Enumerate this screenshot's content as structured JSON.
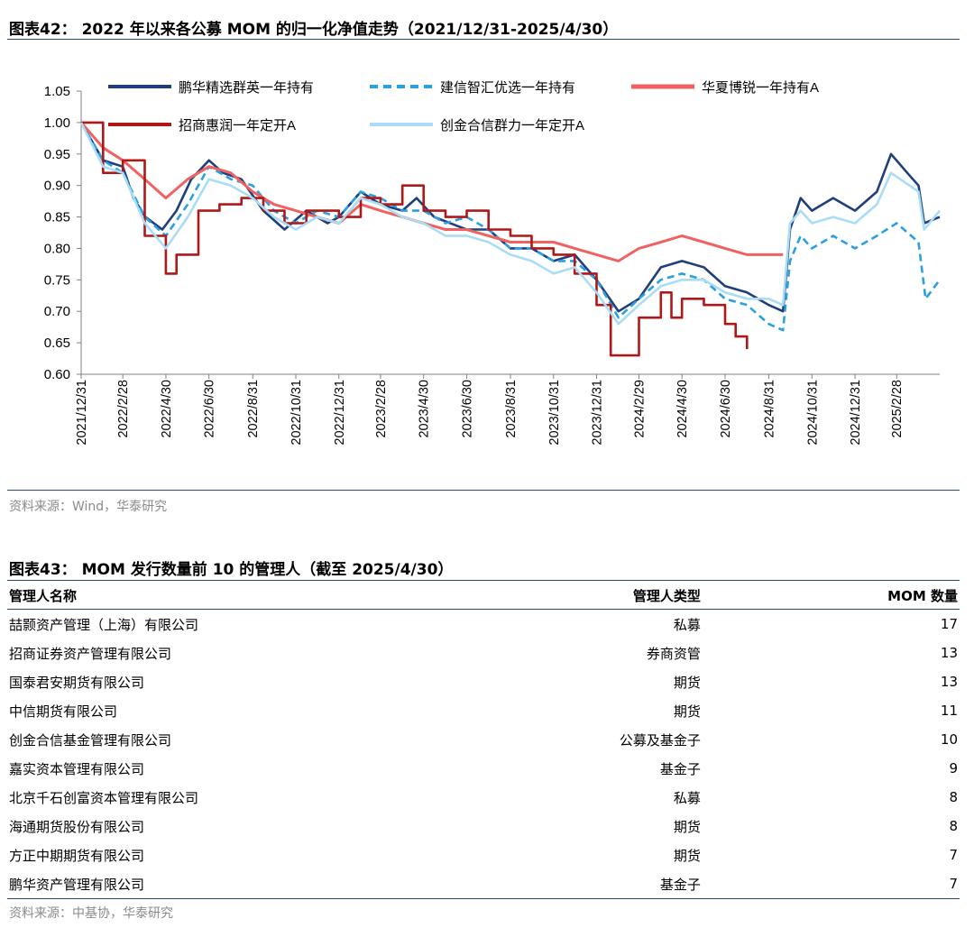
{
  "figure42": {
    "title": "图表42：  2022 年以来各公募 MOM 的归一化净值走势（2021/12/31-2025/4/30）",
    "source": "资料来源：Wind，华泰研究"
  },
  "figure43": {
    "title": "图表43：  MOM 发行数量前 10 的管理人（截至 2025/4/30）",
    "source": "资料来源：中基协，华泰研究",
    "columns": [
      "管理人名称",
      "管理人类型",
      "MOM 数量"
    ],
    "rows": [
      [
        "喆颢资产管理（上海）有限公司",
        "私募",
        "17"
      ],
      [
        "招商证券资产管理有限公司",
        "券商资管",
        "13"
      ],
      [
        "国泰君安期货有限公司",
        "期货",
        "13"
      ],
      [
        "中信期货有限公司",
        "期货",
        "11"
      ],
      [
        "创金合信基金管理有限公司",
        "公募及基金子",
        "10"
      ],
      [
        "嘉实资本管理有限公司",
        "基金子",
        "9"
      ],
      [
        "北京千石创富资本管理有限公司",
        "私募",
        "8"
      ],
      [
        "海通期货股份有限公司",
        "期货",
        "8"
      ],
      [
        "方正中期期货有限公司",
        "期货",
        "7"
      ],
      [
        "鹏华资产管理有限公司",
        "基金子",
        "7"
      ]
    ]
  },
  "chart_data": {
    "type": "line",
    "title": "",
    "xlabel": "",
    "ylabel": "",
    "ylim": [
      0.6,
      1.05
    ],
    "yticks": [
      "0.60",
      "0.65",
      "0.70",
      "0.75",
      "0.80",
      "0.85",
      "0.90",
      "0.95",
      "1.00",
      "1.05"
    ],
    "x_range": [
      "2021/12/31",
      "2025/4/30"
    ],
    "x_tick_labels": [
      "2021/12/31",
      "2022/2/28",
      "2022/4/30",
      "2022/6/30",
      "2022/8/31",
      "2022/10/31",
      "2022/12/31",
      "2023/2/28",
      "2023/4/30",
      "2023/6/30",
      "2023/8/31",
      "2023/10/31",
      "2023/12/31",
      "2024/2/29",
      "2024/4/30",
      "2024/6/30",
      "2024/8/31",
      "2024/10/31",
      "2024/12/31",
      "2025/2/28"
    ],
    "legend_position": "top",
    "grid": false,
    "series": [
      {
        "name": "鹏华精选群英一年持有",
        "color": "#1f3f7a",
        "dash": "solid",
        "points": [
          [
            "2021/12/31",
            1.0
          ],
          [
            "2022/1/31",
            0.94
          ],
          [
            "2022/2/28",
            0.93
          ],
          [
            "2022/3/15",
            0.88
          ],
          [
            "2022/4/1",
            0.85
          ],
          [
            "2022/4/25",
            0.83
          ],
          [
            "2022/5/15",
            0.86
          ],
          [
            "2022/6/5",
            0.91
          ],
          [
            "2022/6/30",
            0.94
          ],
          [
            "2022/7/20",
            0.92
          ],
          [
            "2022/8/15",
            0.91
          ],
          [
            "2022/9/15",
            0.86
          ],
          [
            "2022/10/15",
            0.83
          ],
          [
            "2022/11/15",
            0.86
          ],
          [
            "2022/12/15",
            0.84
          ],
          [
            "2022/12/31",
            0.85
          ],
          [
            "2023/1/31",
            0.89
          ],
          [
            "2023/2/28",
            0.87
          ],
          [
            "2023/3/31",
            0.86
          ],
          [
            "2023/4/20",
            0.88
          ],
          [
            "2023/5/15",
            0.85
          ],
          [
            "2023/6/30",
            0.83
          ],
          [
            "2023/7/31",
            0.83
          ],
          [
            "2023/8/31",
            0.8
          ],
          [
            "2023/9/30",
            0.8
          ],
          [
            "2023/10/31",
            0.78
          ],
          [
            "2023/11/30",
            0.79
          ],
          [
            "2023/12/31",
            0.75
          ],
          [
            "2024/1/31",
            0.7
          ],
          [
            "2024/2/29",
            0.72
          ],
          [
            "2024/3/31",
            0.77
          ],
          [
            "2024/4/30",
            0.78
          ],
          [
            "2024/5/31",
            0.77
          ],
          [
            "2024/6/30",
            0.74
          ],
          [
            "2024/7/31",
            0.73
          ],
          [
            "2024/8/31",
            0.71
          ],
          [
            "2024/9/20",
            0.7
          ],
          [
            "2024/9/30",
            0.83
          ],
          [
            "2024/10/15",
            0.88
          ],
          [
            "2024/10/31",
            0.86
          ],
          [
            "2024/11/30",
            0.88
          ],
          [
            "2024/12/31",
            0.86
          ],
          [
            "2025/1/31",
            0.89
          ],
          [
            "2025/2/20",
            0.95
          ],
          [
            "2025/3/15",
            0.92
          ],
          [
            "2025/3/31",
            0.9
          ],
          [
            "2025/4/8",
            0.84
          ],
          [
            "2025/4/30",
            0.85
          ]
        ]
      },
      {
        "name": "建信智汇优选一年持有",
        "color": "#2aa0e0",
        "dash": "dashed",
        "points": [
          [
            "2021/12/31",
            1.0
          ],
          [
            "2022/1/31",
            0.94
          ],
          [
            "2022/2/28",
            0.92
          ],
          [
            "2022/3/31",
            0.85
          ],
          [
            "2022/4/30",
            0.82
          ],
          [
            "2022/5/31",
            0.87
          ],
          [
            "2022/6/30",
            0.93
          ],
          [
            "2022/7/31",
            0.91
          ],
          [
            "2022/8/31",
            0.9
          ],
          [
            "2022/9/30",
            0.86
          ],
          [
            "2022/10/31",
            0.84
          ],
          [
            "2022/11/30",
            0.86
          ],
          [
            "2022/12/31",
            0.85
          ],
          [
            "2023/1/31",
            0.89
          ],
          [
            "2023/2/28",
            0.88
          ],
          [
            "2023/3/31",
            0.86
          ],
          [
            "2023/4/30",
            0.86
          ],
          [
            "2023/5/31",
            0.84
          ],
          [
            "2023/6/30",
            0.85
          ],
          [
            "2023/7/31",
            0.83
          ],
          [
            "2023/8/31",
            0.8
          ],
          [
            "2023/9/30",
            0.8
          ],
          [
            "2023/10/31",
            0.78
          ],
          [
            "2023/11/30",
            0.78
          ],
          [
            "2023/12/31",
            0.75
          ],
          [
            "2024/1/31",
            0.69
          ],
          [
            "2024/2/29",
            0.72
          ],
          [
            "2024/3/31",
            0.75
          ],
          [
            "2024/4/30",
            0.76
          ],
          [
            "2024/5/31",
            0.75
          ],
          [
            "2024/6/30",
            0.72
          ],
          [
            "2024/7/31",
            0.71
          ],
          [
            "2024/8/31",
            0.68
          ],
          [
            "2024/9/20",
            0.67
          ],
          [
            "2024/9/30",
            0.78
          ],
          [
            "2024/10/15",
            0.82
          ],
          [
            "2024/10/31",
            0.8
          ],
          [
            "2024/11/30",
            0.82
          ],
          [
            "2024/12/31",
            0.8
          ],
          [
            "2025/1/31",
            0.82
          ],
          [
            "2025/2/28",
            0.84
          ],
          [
            "2025/3/31",
            0.81
          ],
          [
            "2025/4/10",
            0.72
          ],
          [
            "2025/4/30",
            0.75
          ]
        ]
      },
      {
        "name": "华夏博锐一年持有A",
        "color": "#f06262",
        "dash": "solid",
        "points": [
          [
            "2021/12/31",
            1.0
          ],
          [
            "2022/1/31",
            0.96
          ],
          [
            "2022/2/28",
            0.94
          ],
          [
            "2022/3/31",
            0.91
          ],
          [
            "2022/4/30",
            0.88
          ],
          [
            "2022/5/31",
            0.91
          ],
          [
            "2022/6/30",
            0.93
          ],
          [
            "2022/7/31",
            0.92
          ],
          [
            "2022/8/31",
            0.89
          ],
          [
            "2022/9/30",
            0.87
          ],
          [
            "2022/10/31",
            0.86
          ],
          [
            "2022/11/30",
            0.85
          ],
          [
            "2022/12/31",
            0.84
          ],
          [
            "2023/1/31",
            0.87
          ],
          [
            "2023/2/28",
            0.86
          ],
          [
            "2023/3/31",
            0.85
          ],
          [
            "2023/4/30",
            0.84
          ],
          [
            "2023/5/31",
            0.83
          ],
          [
            "2023/6/30",
            0.83
          ],
          [
            "2023/7/31",
            0.82
          ],
          [
            "2023/8/31",
            0.81
          ],
          [
            "2023/9/30",
            0.81
          ],
          [
            "2023/10/31",
            0.81
          ],
          [
            "2023/11/30",
            0.8
          ],
          [
            "2023/12/31",
            0.79
          ],
          [
            "2024/1/31",
            0.78
          ],
          [
            "2024/2/29",
            0.8
          ],
          [
            "2024/3/31",
            0.81
          ],
          [
            "2024/4/30",
            0.82
          ],
          [
            "2024/5/31",
            0.81
          ],
          [
            "2024/6/30",
            0.8
          ],
          [
            "2024/7/31",
            0.79
          ],
          [
            "2024/8/31",
            0.79
          ],
          [
            "2024/9/20",
            0.79
          ]
        ]
      },
      {
        "name": "招商惠润一年定开A",
        "color": "#b01818",
        "dash": "step",
        "points": [
          [
            "2021/12/31",
            1.0
          ],
          [
            "2022/1/31",
            0.92
          ],
          [
            "2022/2/28",
            0.94
          ],
          [
            "2022/3/31",
            0.82
          ],
          [
            "2022/4/30",
            0.76
          ],
          [
            "2022/5/15",
            0.79
          ],
          [
            "2022/6/15",
            0.86
          ],
          [
            "2022/7/15",
            0.87
          ],
          [
            "2022/8/15",
            0.88
          ],
          [
            "2022/9/15",
            0.86
          ],
          [
            "2022/10/15",
            0.84
          ],
          [
            "2022/11/15",
            0.86
          ],
          [
            "2022/12/31",
            0.85
          ],
          [
            "2023/1/31",
            0.88
          ],
          [
            "2023/2/28",
            0.87
          ],
          [
            "2023/3/31",
            0.9
          ],
          [
            "2023/4/30",
            0.86
          ],
          [
            "2023/5/31",
            0.85
          ],
          [
            "2023/6/30",
            0.86
          ],
          [
            "2023/7/31",
            0.83
          ],
          [
            "2023/8/31",
            0.82
          ],
          [
            "2023/9/30",
            0.8
          ],
          [
            "2023/10/31",
            0.79
          ],
          [
            "2023/11/30",
            0.76
          ],
          [
            "2023/12/31",
            0.71
          ],
          [
            "2024/1/20",
            0.63
          ],
          [
            "2024/2/29",
            0.69
          ],
          [
            "2024/3/31",
            0.73
          ],
          [
            "2024/4/15",
            0.69
          ],
          [
            "2024/4/30",
            0.72
          ],
          [
            "2024/5/31",
            0.71
          ],
          [
            "2024/6/30",
            0.68
          ],
          [
            "2024/7/15",
            0.66
          ],
          [
            "2024/7/31",
            0.64
          ]
        ]
      },
      {
        "name": "创金合信群力一年定开A",
        "color": "#a9dcf5",
        "dash": "solid",
        "points": [
          [
            "2021/12/31",
            1.0
          ],
          [
            "2022/1/31",
            0.93
          ],
          [
            "2022/2/28",
            0.92
          ],
          [
            "2022/3/31",
            0.84
          ],
          [
            "2022/4/30",
            0.8
          ],
          [
            "2022/5/31",
            0.85
          ],
          [
            "2022/6/30",
            0.91
          ],
          [
            "2022/7/31",
            0.9
          ],
          [
            "2022/8/31",
            0.88
          ],
          [
            "2022/9/30",
            0.85
          ],
          [
            "2022/10/31",
            0.83
          ],
          [
            "2022/11/30",
            0.85
          ],
          [
            "2022/12/31",
            0.84
          ],
          [
            "2023/1/31",
            0.88
          ],
          [
            "2023/2/28",
            0.87
          ],
          [
            "2023/3/31",
            0.85
          ],
          [
            "2023/4/30",
            0.84
          ],
          [
            "2023/5/31",
            0.82
          ],
          [
            "2023/6/30",
            0.82
          ],
          [
            "2023/7/31",
            0.81
          ],
          [
            "2023/8/31",
            0.79
          ],
          [
            "2023/9/30",
            0.78
          ],
          [
            "2023/10/31",
            0.76
          ],
          [
            "2023/11/30",
            0.77
          ],
          [
            "2023/12/31",
            0.73
          ],
          [
            "2024/1/31",
            0.68
          ],
          [
            "2024/2/29",
            0.71
          ],
          [
            "2024/3/31",
            0.74
          ],
          [
            "2024/4/30",
            0.75
          ],
          [
            "2024/5/31",
            0.75
          ],
          [
            "2024/6/30",
            0.73
          ],
          [
            "2024/7/31",
            0.72
          ],
          [
            "2024/8/31",
            0.72
          ],
          [
            "2024/9/20",
            0.71
          ],
          [
            "2024/9/30",
            0.84
          ],
          [
            "2024/10/15",
            0.86
          ],
          [
            "2024/10/31",
            0.84
          ],
          [
            "2024/11/30",
            0.85
          ],
          [
            "2024/12/31",
            0.84
          ],
          [
            "2025/1/31",
            0.87
          ],
          [
            "2025/2/20",
            0.92
          ],
          [
            "2025/3/31",
            0.89
          ],
          [
            "2025/4/8",
            0.83
          ],
          [
            "2025/4/30",
            0.86
          ]
        ]
      }
    ]
  }
}
